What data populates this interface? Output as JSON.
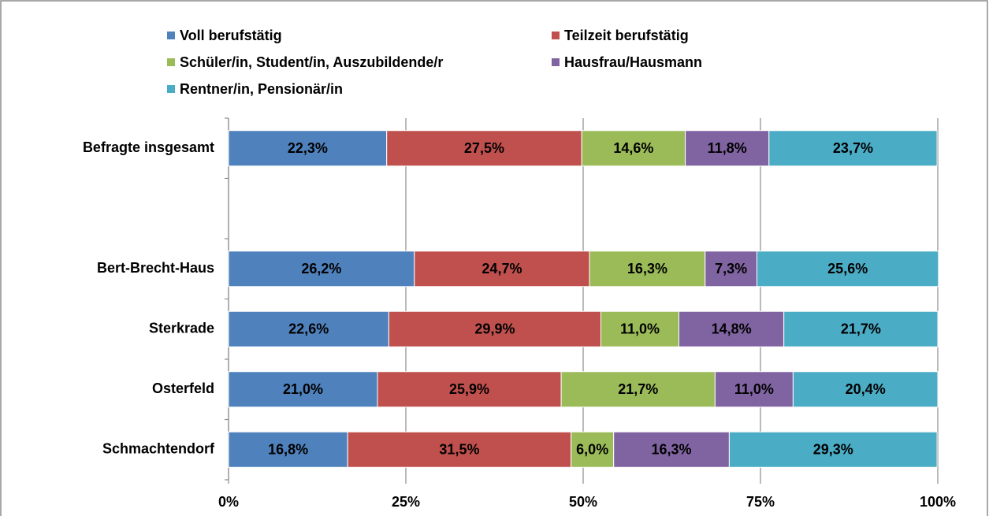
{
  "chart_data": {
    "type": "stacked-bar-horizontal",
    "categories": [
      "Befragte insgesamt",
      null,
      "Bert-Brecht-Haus",
      "Sterkrade",
      "Osterfeld",
      "Schmachtendorf"
    ],
    "series": [
      {
        "name": "Voll berufstätig",
        "color": "#4f81bd",
        "label_color": "#ffffff",
        "values": [
          22.3,
          null,
          26.2,
          22.6,
          21.0,
          16.8
        ],
        "value_labels": [
          "22,3%",
          null,
          "26,2%",
          "22,6%",
          "21,0%",
          "16,8%"
        ]
      },
      {
        "name": "Teilzeit berufstätig",
        "color": "#c0504d",
        "label_color": "#ffffff",
        "values": [
          27.5,
          null,
          24.7,
          29.9,
          25.9,
          31.5
        ],
        "value_labels": [
          "27,5%",
          null,
          "24,7%",
          "29,9%",
          "25,9%",
          "31,5%"
        ]
      },
      {
        "name": "Schüler/in, Student/in, Auszubildende/r",
        "color": "#9bbb59",
        "label_color": "#000000",
        "values": [
          14.6,
          null,
          16.3,
          11.0,
          21.7,
          6.0
        ],
        "value_labels": [
          "14,6%",
          null,
          "16,3%",
          "11,0%",
          "21,7%",
          "6,0%"
        ]
      },
      {
        "name": "Hausfrau/Hausmann",
        "color": "#8064a2",
        "label_color": "#ffffff",
        "values": [
          11.8,
          null,
          7.3,
          14.8,
          11.0,
          16.3
        ],
        "value_labels": [
          "11,8%",
          null,
          "7,3%",
          "14,8%",
          "11,0%",
          "16,3%"
        ]
      },
      {
        "name": "Rentner/in, Pensionär/in",
        "color": "#4bacc6",
        "label_color": "#000000",
        "values": [
          23.7,
          null,
          25.6,
          21.7,
          20.4,
          29.3
        ],
        "value_labels": [
          "23,7%",
          null,
          "25,6%",
          "21,7%",
          "20,4%",
          "29,3%"
        ]
      }
    ],
    "xlim": [
      0,
      100
    ],
    "xticks": [
      {
        "value": 0,
        "label": "0%"
      },
      {
        "value": 25,
        "label": "25%"
      },
      {
        "value": 50,
        "label": "50%"
      },
      {
        "value": 75,
        "label": "75%"
      },
      {
        "value": 100,
        "label": "100%"
      }
    ],
    "grid": true,
    "legend": "top"
  }
}
